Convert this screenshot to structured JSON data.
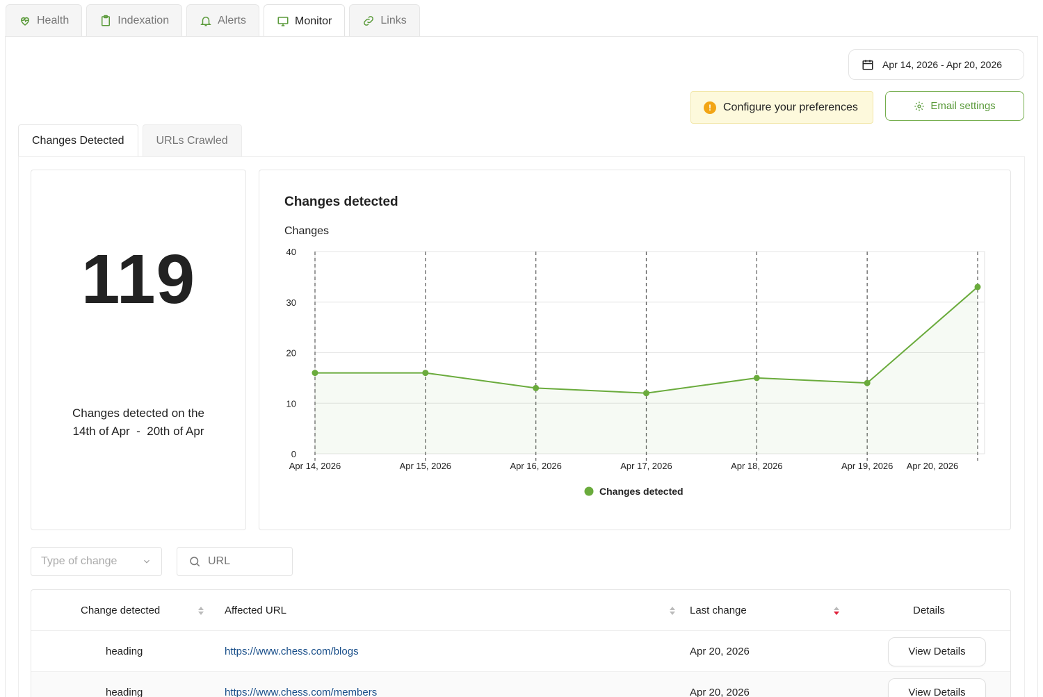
{
  "top_tabs": [
    {
      "label": "Health",
      "icon": "heart-pulse-icon",
      "active": false
    },
    {
      "label": "Indexation",
      "icon": "clipboard-icon",
      "active": false
    },
    {
      "label": "Alerts",
      "icon": "bell-icon",
      "active": false
    },
    {
      "label": "Monitor",
      "icon": "monitor-icon",
      "active": true
    },
    {
      "label": "Links",
      "icon": "link-icon",
      "active": false
    }
  ],
  "date_range": {
    "label": "Apr 14, 2026 - Apr 20, 2026",
    "icon": "calendar-icon"
  },
  "preferences": {
    "label": "Configure your preferences",
    "icon": "warning-icon"
  },
  "email_settings": {
    "label": "Email settings",
    "icon": "gear-icon"
  },
  "sub_tabs": [
    {
      "label": "Changes Detected",
      "active": true
    },
    {
      "label": "URLs Crawled",
      "active": false
    }
  ],
  "stat": {
    "value": "119",
    "caption_line1": "Changes detected on the",
    "caption_line2": "14th of Apr  -  20th of Apr"
  },
  "chart_data": {
    "type": "line",
    "title": "Changes detected",
    "ylabel": "Changes",
    "categories": [
      "Apr 14, 2026",
      "Apr 15, 2026",
      "Apr 16, 2026",
      "Apr 17, 2026",
      "Apr 18, 2026",
      "Apr 19, 2026",
      "Apr 20, 2026"
    ],
    "series": [
      {
        "name": "Changes detected",
        "values": [
          16,
          16,
          13,
          12,
          15,
          14,
          33
        ],
        "color": "#6aab3c"
      }
    ],
    "ylim": [
      0,
      40
    ],
    "yticks": [
      0,
      10,
      20,
      30,
      40
    ],
    "grid": true,
    "legend": "bottom-center"
  },
  "filters": {
    "type_placeholder": "Type of change",
    "url_placeholder": "URL"
  },
  "table": {
    "headers": {
      "change": "Change detected",
      "url": "Affected URL",
      "last": "Last change",
      "details": "Details"
    },
    "rows": [
      {
        "change": "heading",
        "url": "https://www.chess.com/blogs",
        "last": "Apr 20, 2026",
        "action": "View Details"
      },
      {
        "change": "heading",
        "url": "https://www.chess.com/members",
        "last": "Apr 20, 2026",
        "action": "View Details"
      }
    ]
  },
  "colors": {
    "accent": "#6aab3c",
    "link": "#1a4f8a",
    "warning": "#f2a516",
    "sort_active": "#e0213b"
  }
}
